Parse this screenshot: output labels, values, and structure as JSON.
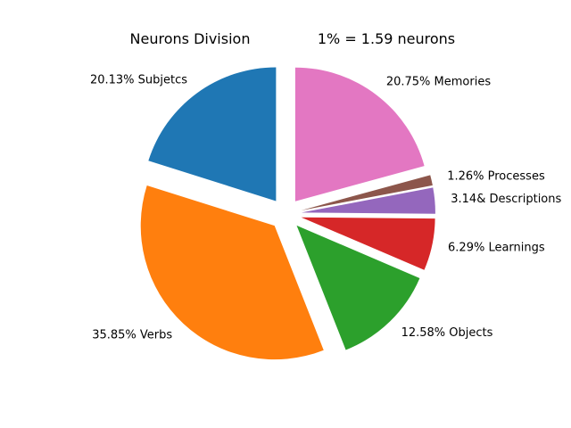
{
  "chart_data": {
    "type": "pie",
    "title": "Neurons Division",
    "subtitle": "1% = 1.59 neurons",
    "slices": [
      {
        "label": "20.13% Subjetcs",
        "value": 20.13,
        "color": "#1f77b4",
        "exploded": true
      },
      {
        "label": "35.85% Verbs",
        "value": 35.85,
        "color": "#ff7f0e",
        "exploded": true
      },
      {
        "label": "12.58% Objects",
        "value": 12.58,
        "color": "#2ca02c",
        "exploded": true
      },
      {
        "label": "6.29% Learnings",
        "value": 6.29,
        "color": "#d62728",
        "exploded": true
      },
      {
        "label": "3.14& Descriptions",
        "value": 3.14,
        "color": "#9467bd",
        "exploded": true
      },
      {
        "label": "1.26% Processes",
        "value": 1.26,
        "color": "#8c564b",
        "exploded": true
      },
      {
        "label": "20.75% Memories",
        "value": 20.75,
        "color": "#e377c2",
        "exploded": true
      }
    ],
    "start_angle_deg": 90,
    "direction": "counterclockwise",
    "legend": "none"
  }
}
